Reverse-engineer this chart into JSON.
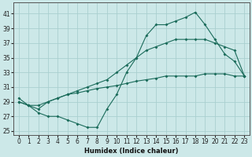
{
  "xlabel": "Humidex (Indice chaleur)",
  "bg_color": "#cce8e8",
  "grid_color": "#aacfcf",
  "line_color": "#1a6b5a",
  "xlim": [
    -0.5,
    23.5
  ],
  "ylim": [
    24.5,
    42.5
  ],
  "xticks": [
    0,
    1,
    2,
    3,
    4,
    5,
    6,
    7,
    8,
    9,
    10,
    11,
    12,
    13,
    14,
    15,
    16,
    17,
    18,
    19,
    20,
    21,
    22,
    23
  ],
  "yticks": [
    25,
    27,
    29,
    31,
    33,
    35,
    37,
    39,
    41
  ],
  "line1_x": [
    0,
    1,
    2,
    3,
    4,
    5,
    6,
    7,
    8,
    9,
    10,
    11,
    12,
    13,
    14,
    15,
    16,
    17,
    18,
    19,
    20,
    21,
    22,
    23
  ],
  "line1_y": [
    29.5,
    28.5,
    27.5,
    27.0,
    27.0,
    26.5,
    26.0,
    25.5,
    25.5,
    28.0,
    30.0,
    33.0,
    35.0,
    38.0,
    39.5,
    39.5,
    40.0,
    40.5,
    41.2,
    39.5,
    37.5,
    35.5,
    34.5,
    32.5
  ],
  "line2_x": [
    0,
    1,
    2,
    3,
    4,
    5,
    6,
    7,
    8,
    9,
    10,
    11,
    12,
    13,
    14,
    15,
    16,
    17,
    18,
    19,
    20,
    21,
    22,
    23
  ],
  "line2_y": [
    29.0,
    28.5,
    28.0,
    29.0,
    29.5,
    30.0,
    30.5,
    31.0,
    31.5,
    32.0,
    33.0,
    34.0,
    35.0,
    36.0,
    36.5,
    37.0,
    37.5,
    37.5,
    37.5,
    37.5,
    37.0,
    36.5,
    36.0,
    32.5
  ],
  "line3_x": [
    0,
    1,
    2,
    3,
    4,
    5,
    6,
    7,
    8,
    9,
    10,
    11,
    12,
    13,
    14,
    15,
    16,
    17,
    18,
    19,
    20,
    21,
    22,
    23
  ],
  "line3_y": [
    29.0,
    28.5,
    28.5,
    29.0,
    29.5,
    30.0,
    30.2,
    30.5,
    30.8,
    31.0,
    31.2,
    31.5,
    31.8,
    32.0,
    32.2,
    32.5,
    32.5,
    32.5,
    32.5,
    32.8,
    32.8,
    32.8,
    32.5,
    32.5
  ]
}
